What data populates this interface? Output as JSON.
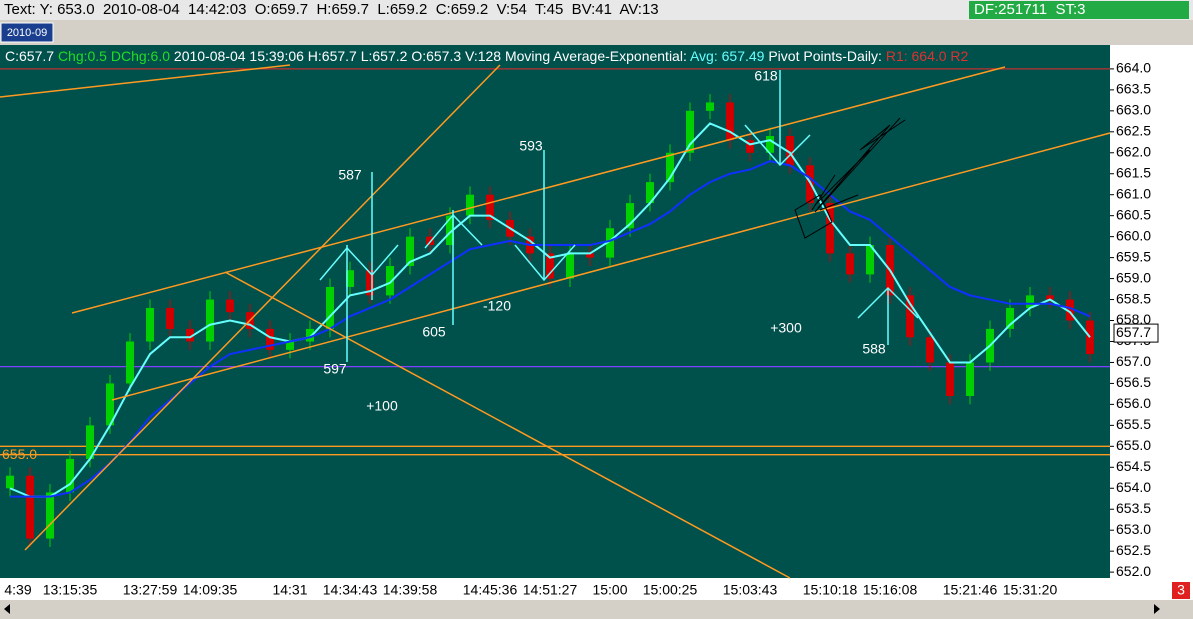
{
  "status_bar": {
    "text": "Text: Y: 653.0  2010-08-04  14:42:03  O:659.7  H:659.7  L:659.2  C:659.2  V:54  T:45  BV:41  AV:13",
    "right": "DF:251711  ST:3"
  },
  "tab": "2010-09",
  "page_badge": "3",
  "chart_data": {
    "type": "candlestick",
    "info": {
      "close": "C:657.7",
      "change": "Chg:0.5 DChg:6.0",
      "details": "2010-08-04 15:39:06 H:657.7 L:657.2 O:657.3 V:128 Moving Average-Exponential:",
      "avg": "Avg: 657.49",
      "pivot": "Pivot Points-Daily:",
      "r": "R1: 664.0  R2"
    },
    "categories": [
      "4:39",
      null,
      null,
      "13:15:35",
      null,
      null,
      null,
      "13:27:59",
      null,
      null,
      "14:09:35",
      null,
      null,
      null,
      "14:31",
      null,
      null,
      "14:34:43",
      null,
      null,
      "14:39:58",
      null,
      null,
      null,
      "14:45:36",
      null,
      null,
      "14:51:27",
      null,
      null,
      "15:00",
      null,
      null,
      "15:00:25",
      null,
      null,
      null,
      "15:03:43",
      null,
      null,
      null,
      "15:10:18",
      null,
      null,
      "15:16:08",
      null,
      null,
      null,
      "15:21:46",
      null,
      null,
      "15:31:20",
      null,
      null,
      null
    ],
    "open": [
      654.0,
      654.3,
      652.8,
      653.9,
      654.7,
      655.5,
      656.5,
      657.5,
      658.3,
      657.8,
      657.5,
      658.5,
      658.2,
      657.8,
      657.3,
      657.5,
      657.8,
      658.8,
      659.2,
      658.6,
      659.3,
      660.0,
      659.8,
      660.5,
      661.0,
      660.4,
      660.0,
      659.6,
      659.0,
      659.6,
      659.5,
      660.2,
      660.8,
      661.3,
      662.0,
      663.0,
      663.2,
      662.3,
      662.0,
      662.4,
      661.7,
      660.8,
      659.6,
      659.1,
      659.8,
      658.6,
      657.6,
      657.0,
      656.2,
      657.0,
      657.8,
      658.3,
      658.6,
      658.5,
      658.0
    ],
    "high": [
      654.5,
      654.5,
      654.1,
      654.9,
      655.7,
      656.7,
      657.7,
      658.5,
      658.5,
      658.0,
      658.7,
      658.7,
      658.4,
      658.0,
      657.7,
      658.0,
      659.0,
      659.4,
      659.4,
      659.5,
      660.2,
      660.2,
      660.7,
      661.2,
      661.2,
      660.6,
      660.2,
      659.8,
      659.8,
      659.8,
      660.4,
      661.0,
      661.5,
      662.2,
      663.2,
      663.4,
      663.4,
      662.5,
      662.6,
      662.6,
      661.9,
      661.0,
      659.8,
      660.0,
      660.0,
      658.8,
      657.8,
      657.2,
      657.2,
      658.0,
      658.5,
      658.8,
      658.8,
      658.7,
      658.2
    ],
    "low": [
      653.8,
      652.6,
      652.6,
      653.7,
      654.5,
      655.3,
      656.3,
      657.3,
      657.6,
      657.3,
      657.3,
      658.0,
      657.6,
      657.1,
      657.1,
      657.3,
      657.6,
      658.6,
      658.4,
      658.4,
      659.1,
      659.6,
      659.6,
      660.3,
      660.2,
      659.8,
      659.4,
      658.8,
      658.8,
      659.3,
      659.3,
      660.0,
      660.6,
      661.1,
      661.8,
      662.8,
      662.1,
      661.8,
      661.8,
      661.5,
      660.6,
      659.4,
      658.9,
      658.9,
      658.4,
      657.4,
      656.8,
      656.0,
      656.0,
      656.8,
      657.6,
      658.1,
      658.3,
      657.8,
      657.0
    ],
    "close": [
      654.3,
      652.8,
      653.9,
      654.7,
      655.5,
      656.5,
      657.5,
      658.3,
      657.8,
      657.5,
      658.5,
      658.2,
      657.8,
      657.3,
      657.5,
      657.8,
      658.8,
      659.2,
      658.6,
      659.3,
      660.0,
      659.8,
      660.5,
      661.0,
      660.4,
      660.0,
      659.6,
      659.0,
      659.6,
      659.5,
      660.2,
      660.8,
      661.3,
      662.0,
      663.0,
      663.2,
      662.3,
      662.0,
      662.4,
      661.7,
      660.8,
      659.6,
      659.1,
      659.8,
      658.6,
      657.6,
      657.0,
      656.2,
      657.0,
      657.8,
      658.3,
      658.6,
      658.5,
      658.0,
      657.2
    ],
    "up_color": "#00d000",
    "down_color": "#d00000",
    "series": [
      {
        "color": "#66ffff",
        "values": [
          654.0,
          653.8,
          653.8,
          654.1,
          654.7,
          655.5,
          656.4,
          657.2,
          657.6,
          657.6,
          657.9,
          658.0,
          657.9,
          657.6,
          657.5,
          657.6,
          658.1,
          658.6,
          658.7,
          658.9,
          659.4,
          659.6,
          660.1,
          660.5,
          660.5,
          660.2,
          659.9,
          659.5,
          659.6,
          659.6,
          659.9,
          660.3,
          660.8,
          661.4,
          662.2,
          662.7,
          662.5,
          662.2,
          662.3,
          662.0,
          661.3,
          660.4,
          659.8,
          659.8,
          659.2,
          658.4,
          657.7,
          657.0,
          657.0,
          657.4,
          657.9,
          658.3,
          658.5,
          658.2,
          657.6
        ]
      },
      {
        "color": "#1030ff",
        "values": [
          653.8,
          653.8,
          653.8,
          653.9,
          654.2,
          654.6,
          655.1,
          655.7,
          656.1,
          656.5,
          656.9,
          657.2,
          657.3,
          657.4,
          657.5,
          657.6,
          657.8,
          658.1,
          658.3,
          658.5,
          658.8,
          659.1,
          659.4,
          659.7,
          659.8,
          659.9,
          659.8,
          659.8,
          659.8,
          659.8,
          659.9,
          660.1,
          660.3,
          660.6,
          661.0,
          661.3,
          661.5,
          661.6,
          661.8,
          661.7,
          661.4,
          661.0,
          660.6,
          660.4,
          660.0,
          659.6,
          659.2,
          658.8,
          658.6,
          658.5,
          658.4,
          658.4,
          658.4,
          658.3,
          658.1
        ]
      }
    ],
    "levels": [
      {
        "value": 664.0,
        "color": "#c03030"
      },
      {
        "value": 656.9,
        "color": "#8040ff"
      },
      {
        "value": 655.0,
        "color": "#ff9a20"
      },
      {
        "value": 654.8,
        "color": "#ff9a20"
      }
    ],
    "level_label": "655.0",
    "last_price": 657.7,
    "ylim": [
      651.86,
      664.57
    ],
    "yticks": [
      {
        "value": 652.0,
        "label": "652.0"
      },
      652.5,
      {
        "value": 653.0,
        "label": "653.0"
      },
      653.5,
      {
        "value": 654.0,
        "label": "654.0"
      },
      654.5,
      {
        "value": 655.0,
        "label": "655.0"
      },
      655.5,
      {
        "value": 656.0,
        "label": "656.0"
      },
      656.5,
      {
        "value": 657.0,
        "label": "657.0"
      },
      657.5,
      {
        "value": 658.0,
        "label": "658.0"
      },
      658.5,
      {
        "value": 659.0,
        "label": "659.0"
      },
      659.5,
      {
        "value": 660.0,
        "label": "660.0"
      },
      660.5,
      {
        "value": 661.0,
        "label": "661.0"
      },
      661.5,
      {
        "value": 662.0,
        "label": "662.0"
      },
      662.5,
      {
        "value": 663.0,
        "label": "663.0"
      },
      663.5,
      {
        "value": 664.0,
        "label": "664.0"
      }
    ],
    "annotations": [
      "587",
      "597",
      "605",
      "593",
      "-120",
      "618",
      "+300",
      "588",
      "+100"
    ]
  }
}
